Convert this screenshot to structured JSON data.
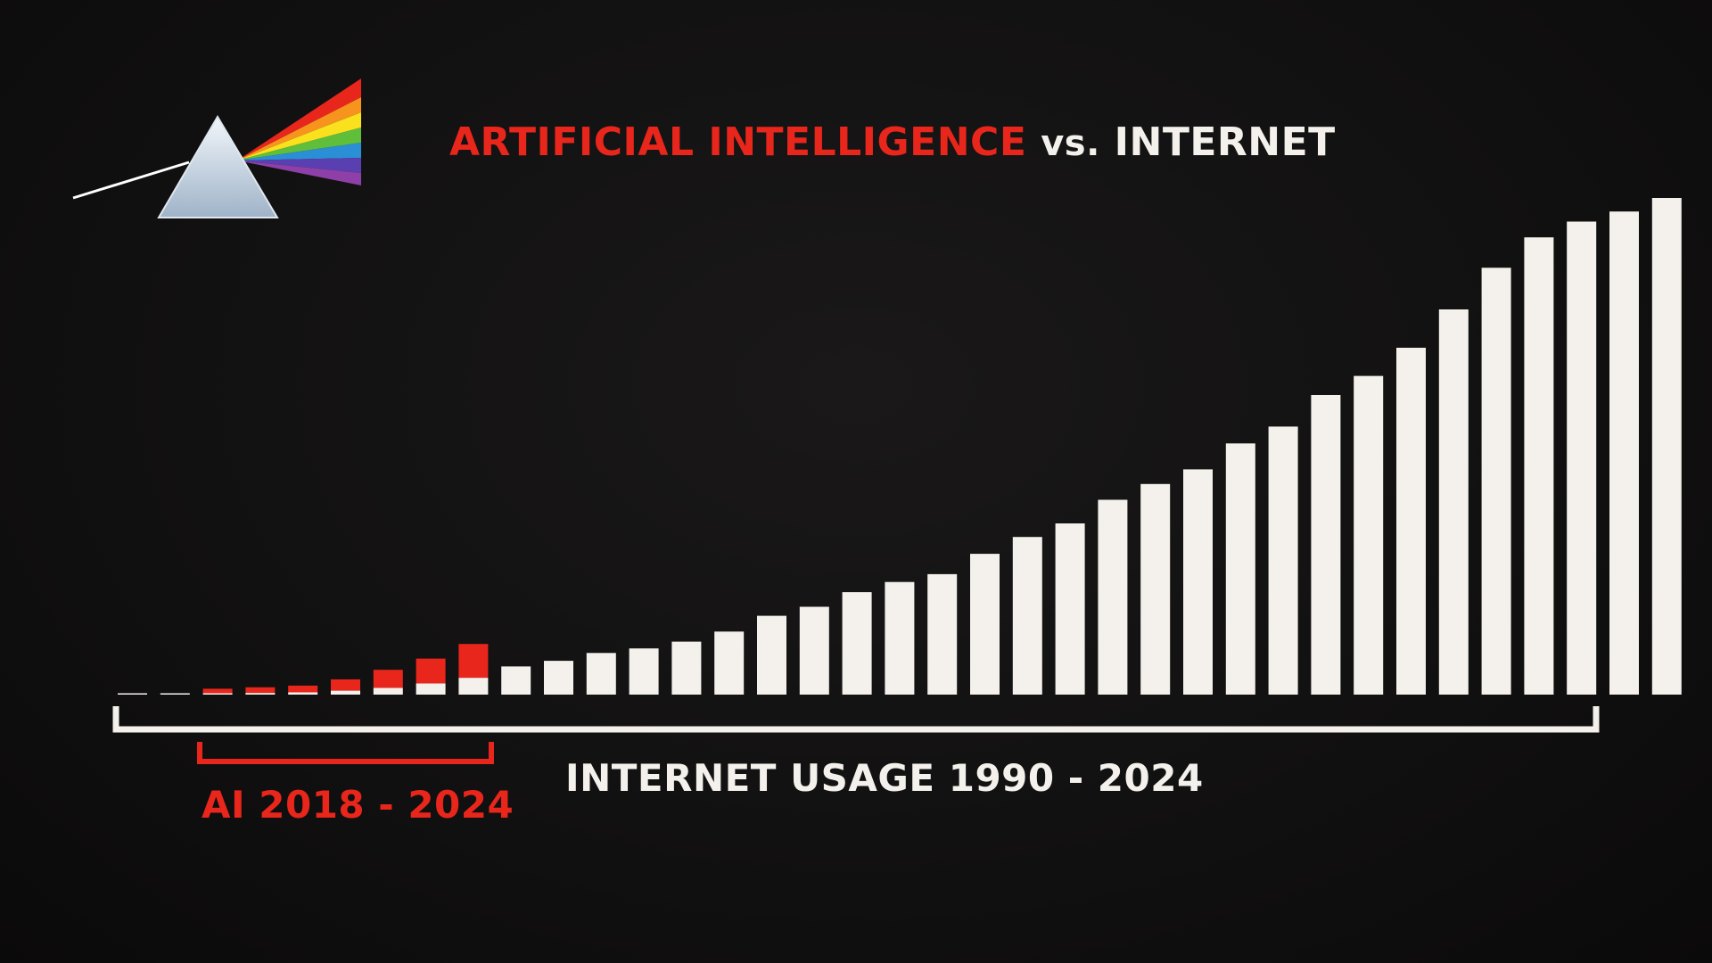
{
  "title": {
    "part1": "ARTIFICIAL INTELLIGENCE",
    "part2": "vs.",
    "part3": "INTERNET"
  },
  "labels": {
    "ai_range": "AI 2018 - 2024",
    "internet_range": "INTERNET USAGE 1990 - 2024"
  },
  "logo": {
    "icon": "prism-rainbow-icon"
  },
  "colors": {
    "background": "#121111",
    "white_bar": "#f4f1ec",
    "ai_red": "#e8261b"
  },
  "chart_data": {
    "type": "bar",
    "series": [
      {
        "name": "INTERNET USAGE 1990 - 2024",
        "color": "#f4f1ec",
        "values": [
          0.5,
          0.5,
          1,
          1.5,
          2,
          3.5,
          6,
          10,
          15,
          25,
          30,
          37,
          41,
          47,
          56,
          70,
          78,
          91,
          100,
          107,
          125,
          140,
          152,
          173,
          187,
          200,
          223,
          238,
          266,
          283,
          308,
          342,
          379,
          406,
          420,
          429,
          441
        ]
      },
      {
        "name": "AI 2018 - 2024",
        "color": "#e8261b",
        "values": [
          0,
          0,
          4,
          5,
          6,
          10,
          16,
          22,
          30,
          0,
          0,
          0,
          0,
          0,
          0,
          0,
          0,
          0,
          0,
          0,
          0,
          0,
          0,
          0,
          0,
          0,
          0,
          0,
          0,
          0,
          0,
          0,
          0,
          0,
          0,
          0,
          0
        ]
      }
    ],
    "ylim": [
      0,
      441
    ],
    "grid": false,
    "legend": "none"
  }
}
